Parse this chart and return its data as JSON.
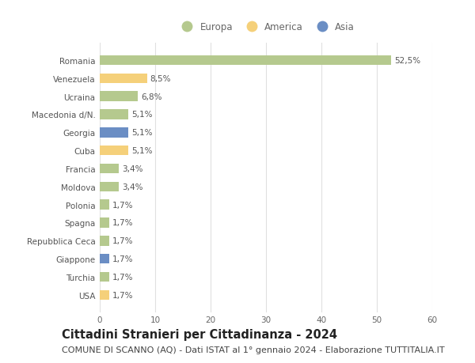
{
  "countries": [
    "Romania",
    "Venezuela",
    "Ucraina",
    "Macedonia d/N.",
    "Georgia",
    "Cuba",
    "Francia",
    "Moldova",
    "Polonia",
    "Spagna",
    "Repubblica Ceca",
    "Giappone",
    "Turchia",
    "USA"
  ],
  "values": [
    52.5,
    8.5,
    6.8,
    5.1,
    5.1,
    5.1,
    3.4,
    3.4,
    1.7,
    1.7,
    1.7,
    1.7,
    1.7,
    1.7
  ],
  "labels": [
    "52,5%",
    "8,5%",
    "6,8%",
    "5,1%",
    "5,1%",
    "5,1%",
    "3,4%",
    "3,4%",
    "1,7%",
    "1,7%",
    "1,7%",
    "1,7%",
    "1,7%",
    "1,7%"
  ],
  "continents": [
    "Europa",
    "America",
    "Europa",
    "Europa",
    "Asia",
    "America",
    "Europa",
    "Europa",
    "Europa",
    "Europa",
    "Europa",
    "Asia",
    "Europa",
    "America"
  ],
  "continent_colors": {
    "Europa": "#b5c98e",
    "America": "#f5d07a",
    "Asia": "#6b8ec4"
  },
  "legend_items": [
    "Europa",
    "America",
    "Asia"
  ],
  "legend_colors": [
    "#b5c98e",
    "#f5d07a",
    "#6b8ec4"
  ],
  "xlim": [
    0,
    60
  ],
  "xticks": [
    0,
    10,
    20,
    30,
    40,
    50,
    60
  ],
  "title": "Cittadini Stranieri per Cittadinanza - 2024",
  "subtitle": "COMUNE DI SCANNO (AQ) - Dati ISTAT al 1° gennaio 2024 - Elaborazione TUTTITALIA.IT",
  "background_color": "#ffffff",
  "grid_color": "#e0e0e0",
  "bar_height": 0.55,
  "title_fontsize": 10.5,
  "subtitle_fontsize": 8,
  "label_fontsize": 7.5,
  "tick_fontsize": 7.5,
  "legend_fontsize": 8.5
}
